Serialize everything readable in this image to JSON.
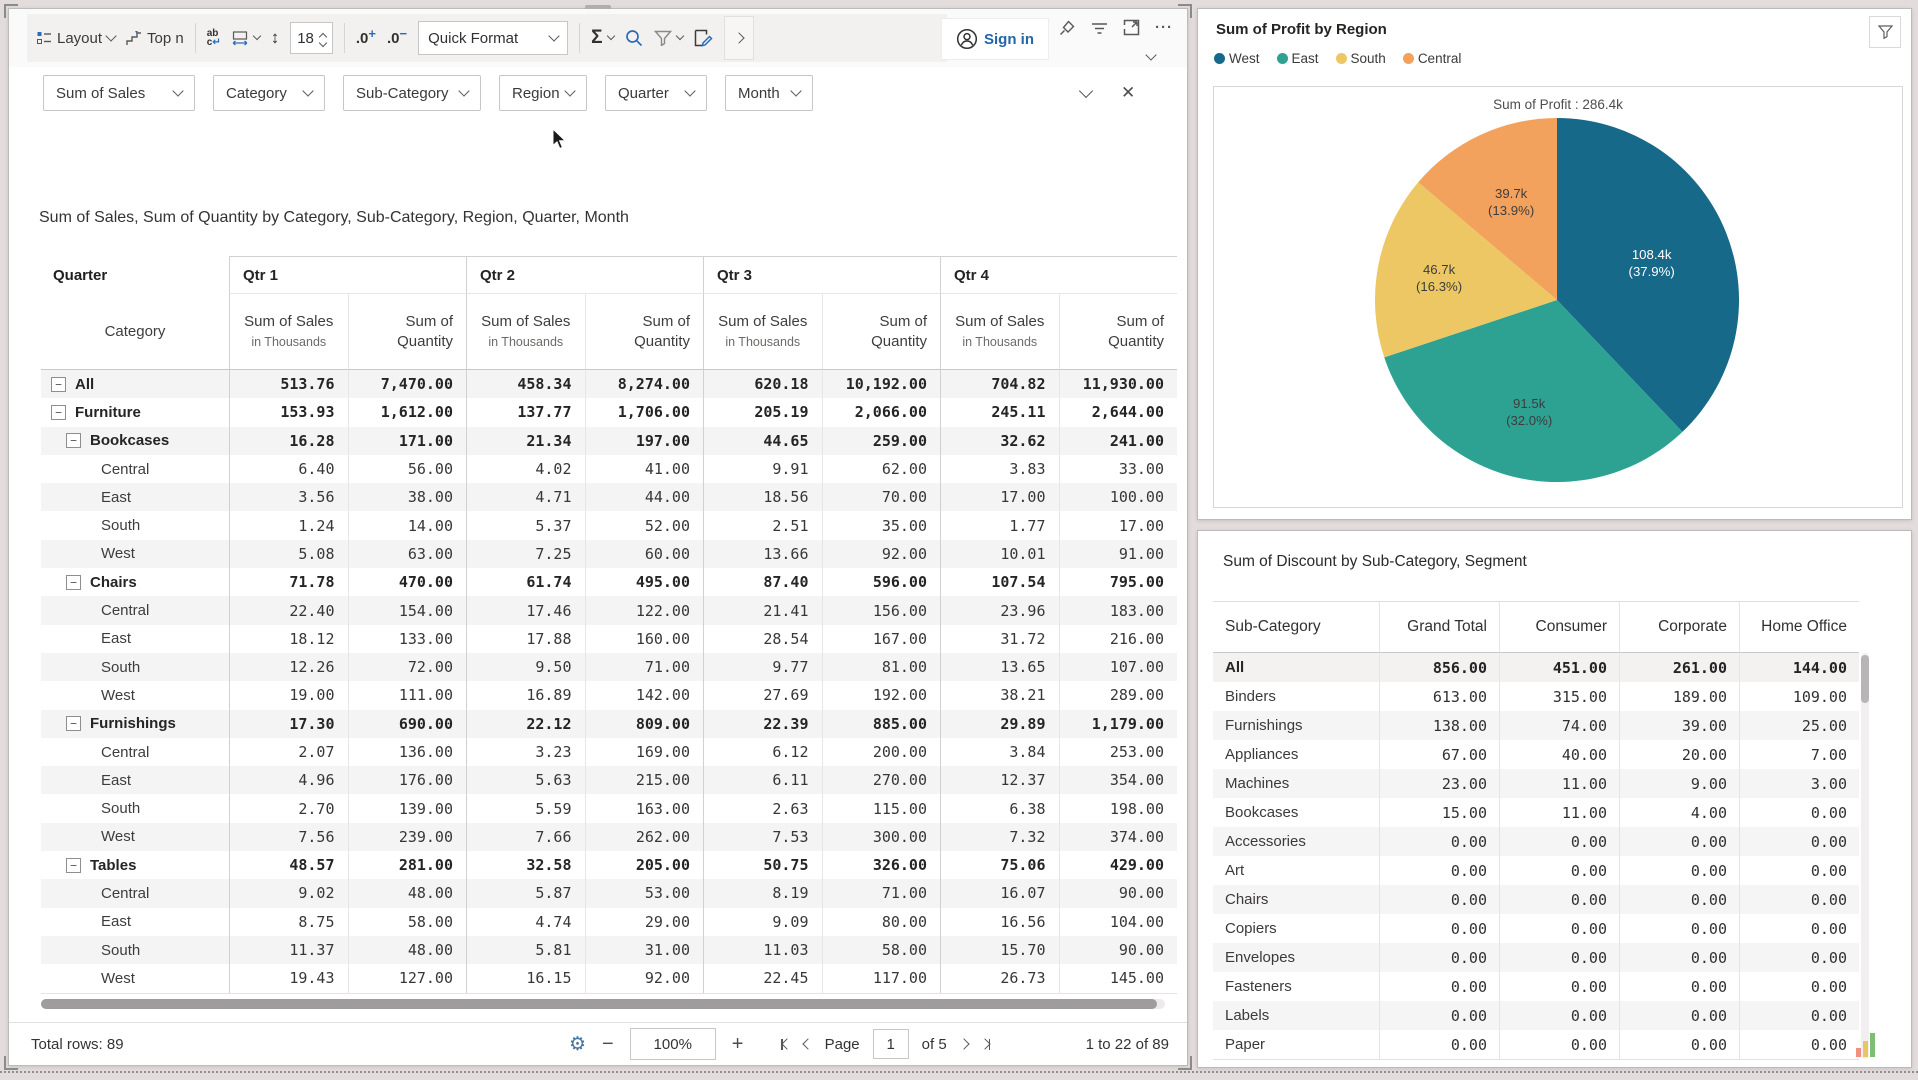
{
  "toolbar": {
    "layout": "Layout",
    "top_n": "Top n",
    "font_size": "18",
    "quick_format": "Quick Format",
    "sign_in": "Sign in",
    "sigma": "Σ",
    "decimal": ".0",
    "row_height_glyph": "↕",
    "more": "···",
    "wrap_ab": "ab",
    "wrap_c": "c",
    "wrap_return": "↵"
  },
  "field_well": [
    "Sum of Sales",
    "Category",
    "Sub-Category",
    "Region",
    "Quarter",
    "Month"
  ],
  "field_well_close": "✕",
  "pivot": {
    "title": "Sum of Sales, Sum of Quantity by Category, Sub-Category, Region, Quarter, Month",
    "corner_top": "Quarter",
    "corner_bottom": "Category",
    "quarters": [
      "Qtr 1",
      "Qtr 2",
      "Qtr 3",
      "Qtr 4"
    ],
    "measure_primary": "Sum of Sales",
    "measure_primary_sub": "in Thousands",
    "measure_secondary_line1": "Sum of",
    "measure_secondary_line2": "Quantity",
    "collapse_glyph": "−",
    "rows": [
      {
        "label": "All",
        "level": 0,
        "expandable": true,
        "bold": true,
        "values": [
          "513.76",
          "7,470.00",
          "458.34",
          "8,274.00",
          "620.18",
          "10,192.00",
          "704.82",
          "11,930.00"
        ]
      },
      {
        "label": "Furniture",
        "level": 0,
        "expandable": true,
        "bold": true,
        "values": [
          "153.93",
          "1,612.00",
          "137.77",
          "1,706.00",
          "205.19",
          "2,066.00",
          "245.11",
          "2,644.00"
        ]
      },
      {
        "label": "Bookcases",
        "level": 1,
        "expandable": true,
        "bold": true,
        "values": [
          "16.28",
          "171.00",
          "21.34",
          "197.00",
          "44.65",
          "259.00",
          "32.62",
          "241.00"
        ]
      },
      {
        "label": "Central",
        "level": 2,
        "expandable": false,
        "bold": false,
        "values": [
          "6.40",
          "56.00",
          "4.02",
          "41.00",
          "9.91",
          "62.00",
          "3.83",
          "33.00"
        ]
      },
      {
        "label": "East",
        "level": 2,
        "expandable": false,
        "bold": false,
        "values": [
          "3.56",
          "38.00",
          "4.71",
          "44.00",
          "18.56",
          "70.00",
          "17.00",
          "100.00"
        ]
      },
      {
        "label": "South",
        "level": 2,
        "expandable": false,
        "bold": false,
        "values": [
          "1.24",
          "14.00",
          "5.37",
          "52.00",
          "2.51",
          "35.00",
          "1.77",
          "17.00"
        ]
      },
      {
        "label": "West",
        "level": 2,
        "expandable": false,
        "bold": false,
        "values": [
          "5.08",
          "63.00",
          "7.25",
          "60.00",
          "13.66",
          "92.00",
          "10.01",
          "91.00"
        ]
      },
      {
        "label": "Chairs",
        "level": 1,
        "expandable": true,
        "bold": true,
        "values": [
          "71.78",
          "470.00",
          "61.74",
          "495.00",
          "87.40",
          "596.00",
          "107.54",
          "795.00"
        ]
      },
      {
        "label": "Central",
        "level": 2,
        "expandable": false,
        "bold": false,
        "values": [
          "22.40",
          "154.00",
          "17.46",
          "122.00",
          "21.41",
          "156.00",
          "23.96",
          "183.00"
        ]
      },
      {
        "label": "East",
        "level": 2,
        "expandable": false,
        "bold": false,
        "values": [
          "18.12",
          "133.00",
          "17.88",
          "160.00",
          "28.54",
          "167.00",
          "31.72",
          "216.00"
        ]
      },
      {
        "label": "South",
        "level": 2,
        "expandable": false,
        "bold": false,
        "values": [
          "12.26",
          "72.00",
          "9.50",
          "71.00",
          "9.77",
          "81.00",
          "13.65",
          "107.00"
        ]
      },
      {
        "label": "West",
        "level": 2,
        "expandable": false,
        "bold": false,
        "values": [
          "19.00",
          "111.00",
          "16.89",
          "142.00",
          "27.69",
          "192.00",
          "38.21",
          "289.00"
        ]
      },
      {
        "label": "Furnishings",
        "level": 1,
        "expandable": true,
        "bold": true,
        "values": [
          "17.30",
          "690.00",
          "22.12",
          "809.00",
          "22.39",
          "885.00",
          "29.89",
          "1,179.00"
        ]
      },
      {
        "label": "Central",
        "level": 2,
        "expandable": false,
        "bold": false,
        "values": [
          "2.07",
          "136.00",
          "3.23",
          "169.00",
          "6.12",
          "200.00",
          "3.84",
          "253.00"
        ]
      },
      {
        "label": "East",
        "level": 2,
        "expandable": false,
        "bold": false,
        "values": [
          "4.96",
          "176.00",
          "5.63",
          "215.00",
          "6.11",
          "270.00",
          "12.37",
          "354.00"
        ]
      },
      {
        "label": "South",
        "level": 2,
        "expandable": false,
        "bold": false,
        "values": [
          "2.70",
          "139.00",
          "5.59",
          "163.00",
          "2.63",
          "115.00",
          "6.38",
          "198.00"
        ]
      },
      {
        "label": "West",
        "level": 2,
        "expandable": false,
        "bold": false,
        "values": [
          "7.56",
          "239.00",
          "7.66",
          "262.00",
          "7.53",
          "300.00",
          "7.32",
          "374.00"
        ]
      },
      {
        "label": "Tables",
        "level": 1,
        "expandable": true,
        "bold": true,
        "values": [
          "48.57",
          "281.00",
          "32.58",
          "205.00",
          "50.75",
          "326.00",
          "75.06",
          "429.00"
        ]
      },
      {
        "label": "Central",
        "level": 2,
        "expandable": false,
        "bold": false,
        "values": [
          "9.02",
          "48.00",
          "5.87",
          "53.00",
          "8.19",
          "71.00",
          "16.07",
          "90.00"
        ]
      },
      {
        "label": "East",
        "level": 2,
        "expandable": false,
        "bold": false,
        "values": [
          "8.75",
          "58.00",
          "4.74",
          "29.00",
          "9.09",
          "80.00",
          "16.56",
          "104.00"
        ]
      },
      {
        "label": "South",
        "level": 2,
        "expandable": false,
        "bold": false,
        "values": [
          "11.37",
          "48.00",
          "5.81",
          "31.00",
          "11.03",
          "58.00",
          "15.70",
          "90.00"
        ]
      },
      {
        "label": "West",
        "level": 2,
        "expandable": false,
        "bold": false,
        "values": [
          "19.43",
          "127.00",
          "16.15",
          "92.00",
          "22.45",
          "117.00",
          "26.73",
          "145.00"
        ]
      }
    ]
  },
  "footer": {
    "total_rows": "Total rows: 89",
    "minus": "−",
    "zoom": "100%",
    "plus": "+",
    "page_label": "Page",
    "page_value": "1",
    "page_of": "of 5",
    "range": "1 to 22 of 89"
  },
  "pie_panel": {
    "title": "Sum of Profit by Region"
  },
  "chart_data": {
    "type": "pie",
    "title": "Sum of Profit by Region",
    "inner_title": "Sum of Profit :  286.4k",
    "total_display": "286.4k",
    "legend_position": "top-left",
    "series": [
      {
        "name": "West",
        "value": 108.4,
        "display": "108.4k",
        "pct": 37.9,
        "pct_display": "(37.9%)",
        "color": "#17698a",
        "label_color": "#ffffff"
      },
      {
        "name": "East",
        "value": 91.5,
        "display": "91.5k",
        "pct": 32.0,
        "pct_display": "(32.0%)",
        "color": "#2da293",
        "label_color": "#3d3d3d"
      },
      {
        "name": "South",
        "value": 46.7,
        "display": "46.7k",
        "pct": 16.3,
        "pct_display": "(16.3%)",
        "color": "#ecc763",
        "label_color": "#3d3d3d"
      },
      {
        "name": "Central",
        "value": 39.7,
        "display": "39.7k",
        "pct": 13.9,
        "pct_display": "(13.9%)",
        "color": "#f2a25d",
        "label_color": "#3d3d3d"
      }
    ]
  },
  "discount_table": {
    "title": "Sum of Discount by Sub-Category, Segment",
    "columns": [
      "Sub-Category",
      "Grand Total",
      "Consumer",
      "Corporate",
      "Home Office"
    ],
    "rows": [
      {
        "label": "All",
        "bold": true,
        "values": [
          "856.00",
          "451.00",
          "261.00",
          "144.00"
        ]
      },
      {
        "label": "Binders",
        "bold": false,
        "values": [
          "613.00",
          "315.00",
          "189.00",
          "109.00"
        ]
      },
      {
        "label": "Furnishings",
        "bold": false,
        "values": [
          "138.00",
          "74.00",
          "39.00",
          "25.00"
        ]
      },
      {
        "label": "Appliances",
        "bold": false,
        "values": [
          "67.00",
          "40.00",
          "20.00",
          "7.00"
        ]
      },
      {
        "label": "Machines",
        "bold": false,
        "values": [
          "23.00",
          "11.00",
          "9.00",
          "3.00"
        ]
      },
      {
        "label": "Bookcases",
        "bold": false,
        "values": [
          "15.00",
          "11.00",
          "4.00",
          "0.00"
        ]
      },
      {
        "label": "Accessories",
        "bold": false,
        "values": [
          "0.00",
          "0.00",
          "0.00",
          "0.00"
        ]
      },
      {
        "label": "Art",
        "bold": false,
        "values": [
          "0.00",
          "0.00",
          "0.00",
          "0.00"
        ]
      },
      {
        "label": "Chairs",
        "bold": false,
        "values": [
          "0.00",
          "0.00",
          "0.00",
          "0.00"
        ]
      },
      {
        "label": "Copiers",
        "bold": false,
        "values": [
          "0.00",
          "0.00",
          "0.00",
          "0.00"
        ]
      },
      {
        "label": "Envelopes",
        "bold": false,
        "values": [
          "0.00",
          "0.00",
          "0.00",
          "0.00"
        ]
      },
      {
        "label": "Fasteners",
        "bold": false,
        "values": [
          "0.00",
          "0.00",
          "0.00",
          "0.00"
        ]
      },
      {
        "label": "Labels",
        "bold": false,
        "values": [
          "0.00",
          "0.00",
          "0.00",
          "0.00"
        ]
      },
      {
        "label": "Paper",
        "bold": false,
        "values": [
          "0.00",
          "0.00",
          "0.00",
          "0.00"
        ]
      }
    ]
  }
}
